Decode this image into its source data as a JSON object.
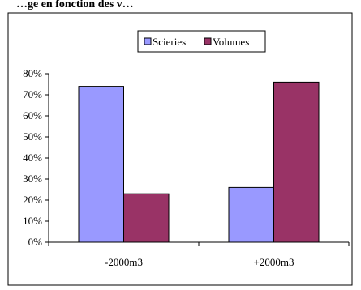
{
  "heading_fragment": "…ge en fonction des v…",
  "colors": {
    "series_1": "#9999ff",
    "series_2": "#993366",
    "frame": "#000000",
    "background": "#ffffff"
  },
  "chart_data": {
    "type": "bar",
    "title": "",
    "xlabel": "",
    "ylabel": "",
    "categories": [
      "-2000m3",
      "+2000m3"
    ],
    "series": [
      {
        "name": "Scieries",
        "values": [
          0.74,
          0.26
        ]
      },
      {
        "name": "Volumes",
        "values": [
          0.23,
          0.76
        ]
      }
    ],
    "ylim": [
      0,
      0.8
    ],
    "y_ticks": [
      "0%",
      "10%",
      "20%",
      "30%",
      "40%",
      "50%",
      "60%",
      "70%",
      "80%"
    ],
    "grid": false,
    "legend_position": "top-center"
  }
}
